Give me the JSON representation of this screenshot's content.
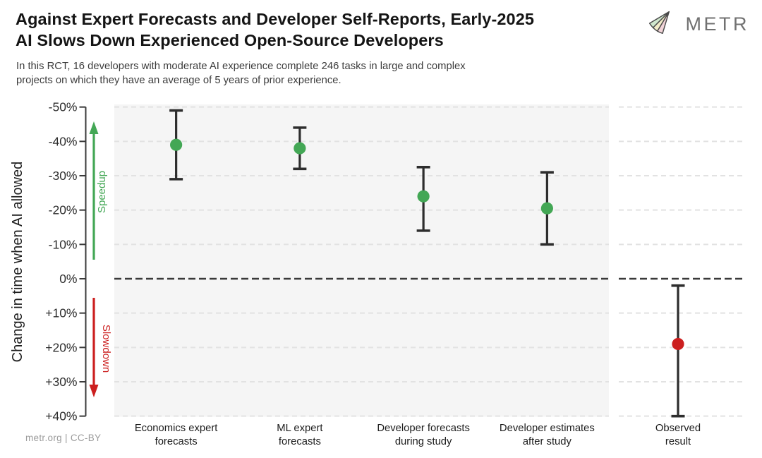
{
  "header": {
    "title_line1": "Against Expert Forecasts and Developer Self-Reports, Early-2025",
    "title_line2": "AI Slows Down Experienced Open-Source Developers",
    "subtitle_line1": "In this RCT, 16 developers with moderate AI experience complete 246 tasks in large and complex",
    "subtitle_line2": "projects on which they have an average of 5 years of prior experience.",
    "logo_text": "METR"
  },
  "footer": {
    "attribution": "metr.org  |  CC-BY"
  },
  "colors": {
    "green": "#43a755",
    "red": "#cc1f1f",
    "errorbar": "#2d2d2d",
    "axis": "#3a3a3a",
    "grid": "#e2e2e2",
    "panel_bg": "#f5f5f5",
    "observed_bg": "#ffffff",
    "tick_text": "#2e2e2e",
    "label_text": "#1c1c1c",
    "logo_fan_green": "#cfe7cd",
    "logo_fan_yellow": "#f2edc9",
    "logo_fan_pink": "#f1d3d7",
    "logo_outline": "#4a4a4a"
  },
  "chart_data": {
    "type": "scatter",
    "title": "Against Expert Forecasts and Developer Self-Reports, Early-2025 AI Slows Down Experienced Open-Source Developers",
    "subtitle": "In this RCT, 16 developers with moderate AI experience complete 246 tasks in large and complex projects on which they have an average of 5 years of prior experience.",
    "ylabel": "Change in time when AI allowed",
    "y_unit": "%",
    "y_axis_inverted": true,
    "ylim": [
      -50,
      40
    ],
    "grid": "dashed-horizontal",
    "legend_position": "none",
    "zero_line": 0,
    "y_ticks": [
      {
        "value": -50,
        "label": "-50%"
      },
      {
        "value": -40,
        "label": "-40%"
      },
      {
        "value": -30,
        "label": "-30%"
      },
      {
        "value": -20,
        "label": "-20%"
      },
      {
        "value": -10,
        "label": "-10%"
      },
      {
        "value": 0,
        "label": "0%"
      },
      {
        "value": 10,
        "label": "+10%"
      },
      {
        "value": 20,
        "label": "+20%"
      },
      {
        "value": 30,
        "label": "+30%"
      },
      {
        "value": 40,
        "label": "+40%"
      }
    ],
    "annotations": [
      {
        "id": "speedup",
        "label": "Speedup",
        "direction": "up",
        "color": "green"
      },
      {
        "id": "slowdown",
        "label": "Slowdown",
        "direction": "down",
        "color": "red"
      }
    ],
    "points": [
      {
        "id": "economics-expert-forecasts",
        "label_lines": [
          "Economics expert",
          "forecasts"
        ],
        "value": -39,
        "ci": [
          -49,
          -29
        ],
        "color": "green",
        "panel": "main"
      },
      {
        "id": "ml-expert-forecasts",
        "label_lines": [
          "ML expert",
          "forecasts"
        ],
        "value": -38,
        "ci": [
          -44,
          -32
        ],
        "color": "green",
        "panel": "main"
      },
      {
        "id": "developer-forecasts-during-study",
        "label_lines": [
          "Developer forecasts",
          "during study"
        ],
        "value": -24,
        "ci": [
          -32.5,
          -14
        ],
        "color": "green",
        "panel": "main"
      },
      {
        "id": "developer-estimates-after-study",
        "label_lines": [
          "Developer estimates",
          "after study"
        ],
        "value": -20.5,
        "ci": [
          -31,
          -10
        ],
        "color": "green",
        "panel": "main"
      },
      {
        "id": "observed-result",
        "label_lines": [
          "Observed",
          "result"
        ],
        "value": 19,
        "ci": [
          2,
          40
        ],
        "color": "red",
        "panel": "observed"
      }
    ]
  }
}
